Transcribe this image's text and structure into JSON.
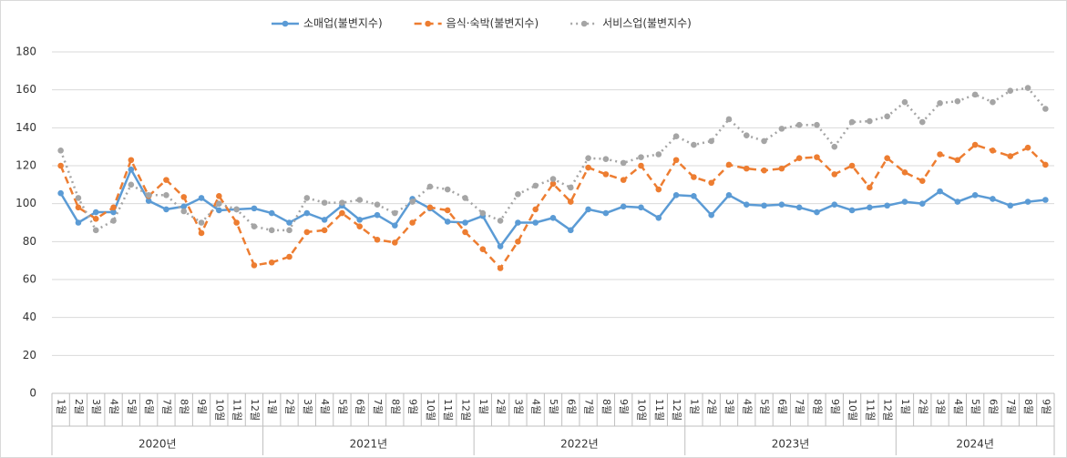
{
  "chart_data": {
    "type": "line",
    "groups": [
      {
        "label": "2020년",
        "categories": [
          "1월",
          "2월",
          "3월",
          "4월",
          "5월",
          "6월",
          "7월",
          "8월",
          "9월",
          "10월",
          "11월",
          "12월"
        ]
      },
      {
        "label": "2021년",
        "categories": [
          "1월",
          "2월",
          "3월",
          "4월",
          "5월",
          "6월",
          "7월",
          "8월",
          "9월",
          "10월",
          "11월",
          "12월"
        ]
      },
      {
        "label": "2022년",
        "categories": [
          "1월",
          "2월",
          "3월",
          "4월",
          "5월",
          "6월",
          "7월",
          "8월",
          "9월",
          "10월",
          "11월",
          "12월"
        ]
      },
      {
        "label": "2023년",
        "categories": [
          "1월",
          "2월",
          "3월",
          "4월",
          "5월",
          "6월",
          "7월",
          "8월",
          "9월",
          "10월",
          "11월",
          "12월"
        ]
      },
      {
        "label": "2024년",
        "categories": [
          "1월",
          "2월",
          "3월",
          "4월",
          "5월",
          "6월",
          "7월",
          "8월",
          "9월"
        ]
      }
    ],
    "series": [
      {
        "name": "소매업(불변지수)",
        "color": "#5b9bd5",
        "dash": "solid",
        "values": [
          105.5,
          90,
          95.5,
          95.5,
          118,
          101.5,
          97,
          98.5,
          103,
          96.5,
          97,
          97.5,
          95,
          90,
          95,
          91.5,
          99,
          91.5,
          94,
          88.5,
          102.5,
          97.5,
          90.5,
          90,
          93.5,
          77.5,
          90,
          90,
          92.5,
          86,
          97,
          95,
          98.5,
          98,
          92.5,
          104.5,
          104,
          94,
          104.5,
          99.5,
          99,
          99.5,
          98,
          95.5,
          99.5,
          96.5,
          98,
          99,
          101,
          100,
          106.5,
          101,
          104.5,
          102.5,
          99,
          101,
          102
        ]
      },
      {
        "name": "음식·숙박(불변지수)",
        "color": "#ed7d31",
        "dash": "dash",
        "values": [
          120,
          98,
          92,
          98,
          123,
          104,
          112.5,
          103.5,
          84.5,
          104,
          90,
          67.5,
          69,
          72,
          85,
          86,
          95,
          88,
          81,
          79.5,
          90,
          98,
          96.5,
          85,
          76,
          66,
          80,
          97,
          110.5,
          101,
          119,
          115.5,
          112.5,
          120,
          107.5,
          123,
          114,
          111,
          120.5,
          118.5,
          117.5,
          118.5,
          124,
          124.5,
          115.5,
          120,
          108.5,
          124,
          116.5,
          112,
          126,
          123,
          131,
          128,
          125,
          129.5,
          120.5
        ]
      },
      {
        "name": "서비스업(불변지수)",
        "color": "#a5a5a5",
        "dash": "dot",
        "values": [
          128,
          103,
          86,
          91,
          110,
          104.5,
          104.5,
          96,
          90,
          100,
          97,
          88,
          86,
          86,
          103,
          100.5,
          100.5,
          102,
          99.5,
          95,
          101,
          109,
          107.5,
          103,
          95,
          91,
          105,
          109.5,
          113,
          108.5,
          124,
          123.5,
          121.5,
          124.5,
          126,
          135.5,
          131,
          133,
          144.5,
          136,
          133,
          139.5,
          141.5,
          141.5,
          130,
          143,
          143.5,
          146,
          153.5,
          143,
          153,
          154,
          157.5,
          153.5,
          159.5,
          161,
          150
        ]
      }
    ],
    "ylim": [
      0,
      180
    ],
    "yticks": [
      0,
      20,
      40,
      60,
      80,
      100,
      120,
      140,
      160,
      180
    ],
    "grid": true,
    "legend": "top"
  }
}
